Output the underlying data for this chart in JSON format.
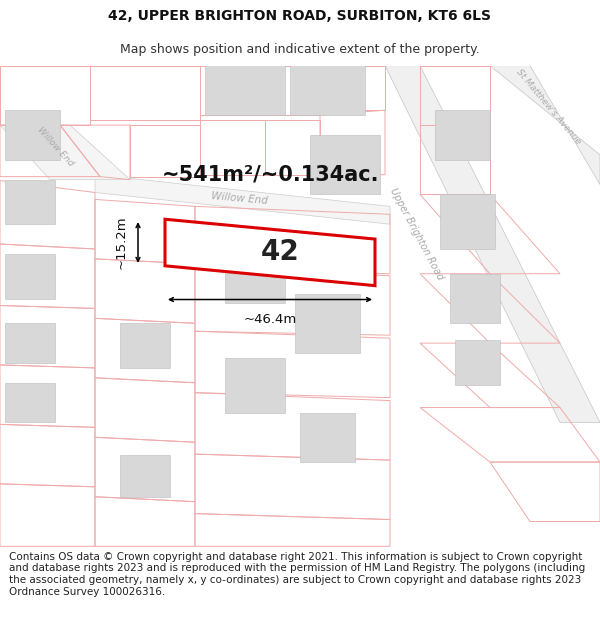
{
  "title_line1": "42, UPPER BRIGHTON ROAD, SURBITON, KT6 6LS",
  "title_line2": "Map shows position and indicative extent of the property.",
  "area_text": "~541m²/~0.134ac.",
  "property_number": "42",
  "width_label": "~46.4m",
  "height_label": "~15.2m",
  "footer_text": "Contains OS data © Crown copyright and database right 2021. This information is subject to Crown copyright and database rights 2023 and is reproduced with the permission of HM Land Registry. The polygons (including the associated geometry, namely x, y co-ordinates) are subject to Crown copyright and database rights 2023 Ordnance Survey 100026316.",
  "bg_color": "#ffffff",
  "map_bg": "#ffffff",
  "parcel_edge": "#f0aaaa",
  "road_edge": "#cccccc",
  "building_color": "#d8d8d8",
  "property_fill": "#ffffff",
  "property_edge": "#dd0000",
  "road_label_color": "#aaaaaa",
  "title_fontsize": 10,
  "subtitle_fontsize": 9,
  "footer_fontsize": 7.5,
  "area_fontsize": 15,
  "number_fontsize": 20,
  "dim_fontsize": 9.5
}
